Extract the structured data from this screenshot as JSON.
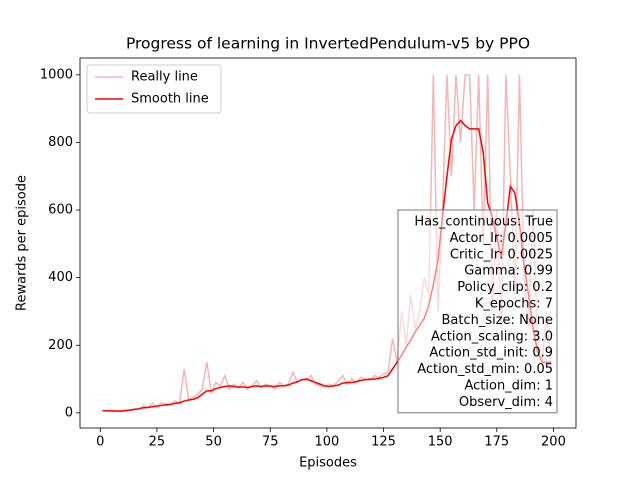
{
  "chart_data": {
    "type": "line",
    "title": "Progress of learning in InvertedPendulum-v5 by PPO",
    "x_label": "Episodes",
    "y_label": "Rewards per episode",
    "x": [
      1,
      3,
      5,
      7,
      9,
      11,
      13,
      15,
      17,
      19,
      21,
      23,
      25,
      27,
      29,
      31,
      33,
      35,
      37,
      39,
      41,
      43,
      45,
      47,
      49,
      51,
      53,
      55,
      57,
      59,
      61,
      63,
      65,
      67,
      69,
      71,
      73,
      75,
      77,
      79,
      81,
      83,
      85,
      87,
      89,
      91,
      93,
      95,
      97,
      99,
      101,
      103,
      105,
      107,
      109,
      111,
      113,
      115,
      117,
      119,
      121,
      123,
      125,
      127,
      129,
      131,
      133,
      135,
      137,
      139,
      141,
      143,
      145,
      147,
      149,
      151,
      153,
      155,
      157,
      159,
      161,
      163,
      165,
      167,
      169,
      171,
      173,
      175,
      177,
      179,
      181,
      183,
      185,
      187,
      189,
      191,
      193,
      195,
      197,
      199
    ],
    "series": [
      {
        "name": "Really line",
        "color": "#f5b5b5",
        "values": [
          8,
          7,
          6,
          5,
          7,
          9,
          8,
          12,
          10,
          22,
          15,
          28,
          18,
          30,
          22,
          25,
          35,
          28,
          130,
          40,
          45,
          55,
          70,
          150,
          60,
          90,
          80,
          110,
          70,
          85,
          75,
          90,
          70,
          80,
          95,
          75,
          85,
          80,
          70,
          90,
          80,
          85,
          120,
          90,
          100,
          95,
          110,
          85,
          80,
          75,
          85,
          80,
          95,
          110,
          85,
          100,
          90,
          105,
          100,
          95,
          110,
          105,
          115,
          120,
          220,
          150,
          300,
          200,
          350,
          250,
          300,
          400,
          350,
          1000,
          300,
          600,
          1000,
          700,
          1000,
          800,
          1000,
          1000,
          600,
          1000,
          500,
          1000,
          300,
          600,
          250,
          1000,
          700,
          350,
          1000,
          400,
          250,
          600,
          200,
          150,
          300,
          120
        ]
      },
      {
        "name": "Smooth line",
        "color": "#ff0000",
        "values": [
          6,
          6,
          6,
          5,
          5,
          6,
          8,
          10,
          12,
          15,
          16,
          18,
          20,
          22,
          24,
          25,
          28,
          30,
          35,
          38,
          40,
          45,
          55,
          65,
          65,
          72,
          75,
          78,
          80,
          78,
          76,
          77,
          75,
          78,
          80,
          78,
          80,
          79,
          78,
          80,
          80,
          82,
          88,
          92,
          98,
          100,
          95,
          90,
          85,
          80,
          78,
          80,
          82,
          88,
          90,
          90,
          92,
          96,
          98,
          100,
          100,
          102,
          105,
          110,
          130,
          150,
          170,
          195,
          215,
          240,
          260,
          280,
          320,
          380,
          450,
          580,
          700,
          810,
          850,
          865,
          850,
          840,
          840,
          840,
          770,
          620,
          580,
          520,
          460,
          560,
          670,
          650,
          560,
          440,
          350,
          250,
          180,
          150,
          150,
          150
        ]
      }
    ],
    "xlim": [
      -8.95,
      209.95
    ],
    "ylim": [
      -44.75,
      1049.75
    ],
    "xticks": [
      0,
      25,
      50,
      75,
      100,
      125,
      150,
      175,
      200
    ],
    "yticks": [
      0,
      200,
      400,
      600,
      800,
      1000
    ],
    "legend": "upper left",
    "annotations": [
      "Has_continuous: True",
      "Actor_lr: 0.0005",
      "Critic_lr: 0.0025",
      "Gamma: 0.99",
      "Policy_clip: 0.2",
      "K_epochs: 7",
      "Batch_size: None",
      "Action_scaling: 3.0",
      "Action_std_init: 0.9",
      "Action_std_min: 0.05",
      "Action_dim: 1",
      "Observ_dim: 4"
    ]
  }
}
